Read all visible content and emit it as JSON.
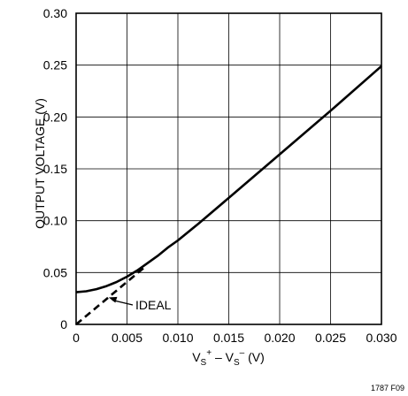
{
  "chart_data": {
    "type": "line",
    "xlabel_parts": {
      "v1": "V",
      "sub1": "S",
      "sup1": "+",
      "mid": " – ",
      "v2": "V",
      "sub2": "S",
      "sup2": "–",
      "unit": " (V)"
    },
    "ylabel": "OUTPUT VOLTAGE (V)",
    "xlim": [
      0,
      0.03
    ],
    "ylim": [
      0,
      0.3
    ],
    "x_ticks": [
      0,
      0.005,
      0.01,
      0.015,
      0.02,
      0.025,
      0.03
    ],
    "x_tick_labels": [
      "0",
      "0.005",
      "0.010",
      "0.015",
      "0.020",
      "0.025",
      "0.030"
    ],
    "y_ticks": [
      0,
      0.05,
      0.1,
      0.15,
      0.2,
      0.25,
      0.3
    ],
    "y_tick_labels": [
      "0",
      "0.05",
      "0.10",
      "0.15",
      "0.20",
      "0.25",
      "0.30"
    ],
    "grid": true,
    "series": [
      {
        "style": "solid",
        "x": [
          0,
          0.001,
          0.002,
          0.003,
          0.004,
          0.005,
          0.006,
          0.007,
          0.008,
          0.009,
          0.01,
          0.012,
          0.015,
          0.02,
          0.025,
          0.03
        ],
        "y": [
          0.031,
          0.032,
          0.034,
          0.037,
          0.041,
          0.046,
          0.052,
          0.059,
          0.066,
          0.074,
          0.081,
          0.097,
          0.122,
          0.164,
          0.206,
          0.249
        ]
      },
      {
        "name": "IDEAL",
        "style": "dashed",
        "x": [
          0,
          0.0067
        ],
        "y": [
          0,
          0.055
        ]
      }
    ],
    "annotations": [
      {
        "text": "IDEAL",
        "target_x": 0.0032,
        "target_y": 0.026
      }
    ]
  },
  "figure_id": "1787 F09"
}
